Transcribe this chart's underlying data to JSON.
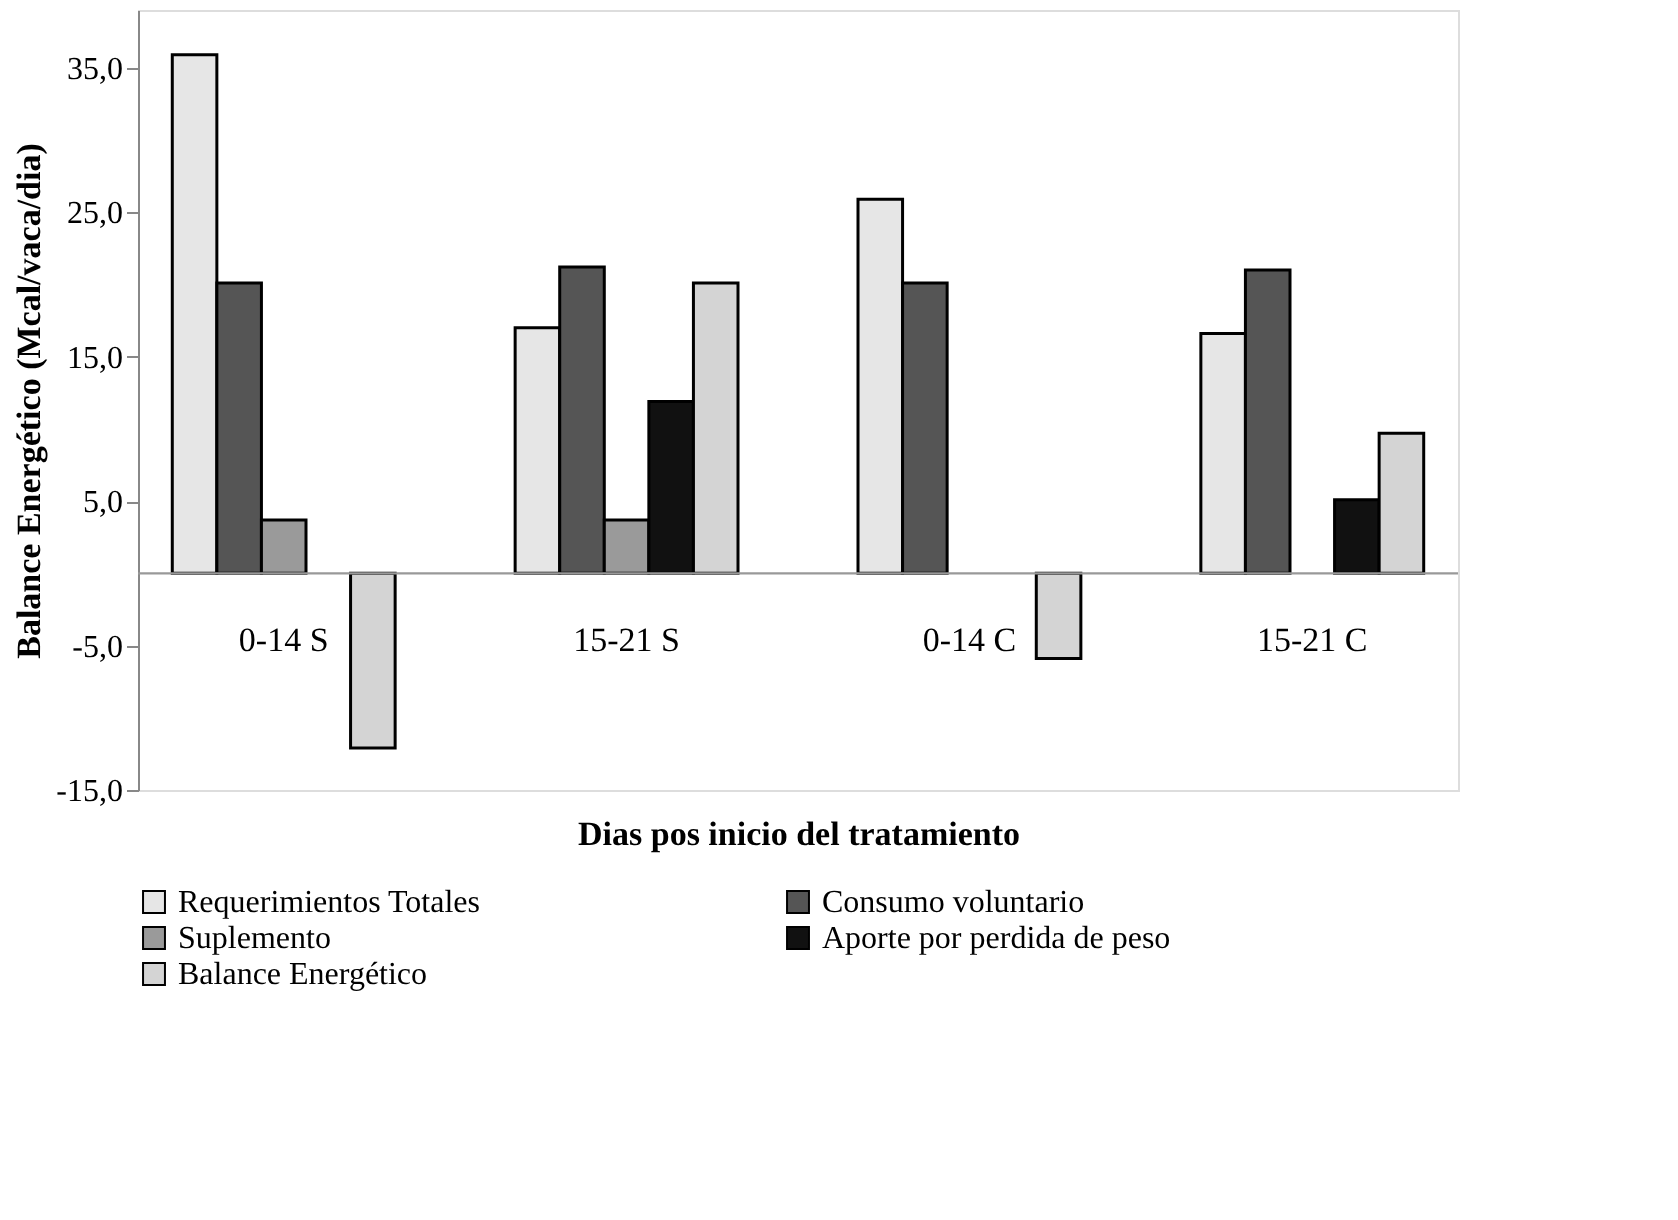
{
  "chart_data": {
    "type": "bar",
    "xlabel": "Dias pos inicio del tratamiento",
    "ylabel": "Balance Energético (Mcal/vaca/dia)",
    "categories": [
      "0-14 S",
      "15-21 S",
      "0-14 C",
      "15-21 C"
    ],
    "series": [
      {
        "name": "Requerimientos Totales",
        "color": "#e6e6e6",
        "values": [
          35.9,
          17.0,
          25.9,
          16.6
        ]
      },
      {
        "name": "Consumo voluntario",
        "color": "#555555",
        "values": [
          20.1,
          21.2,
          20.1,
          21.0
        ]
      },
      {
        "name": "Suplemento",
        "color": "#9a9a9a",
        "values": [
          3.7,
          3.7,
          null,
          null
        ]
      },
      {
        "name": "Aporte por perdida de peso",
        "color": "#111111",
        "values": [
          null,
          11.9,
          null,
          5.1
        ]
      },
      {
        "name": "Balance Energético",
        "color": "#d4d4d4",
        "values": [
          -12.1,
          20.1,
          -5.9,
          9.7
        ]
      }
    ],
    "ylim": [
      -15,
      39
    ],
    "yticks": [
      {
        "value": -15,
        "label": "-15,0"
      },
      {
        "value": -5,
        "label": "-5,0"
      },
      {
        "value": 5,
        "label": "5,0"
      },
      {
        "value": 15,
        "label": "15,0"
      },
      {
        "value": 25,
        "label": "25,0"
      },
      {
        "value": 35,
        "label": "35,0"
      }
    ],
    "grid": false,
    "legend": "bottom"
  }
}
